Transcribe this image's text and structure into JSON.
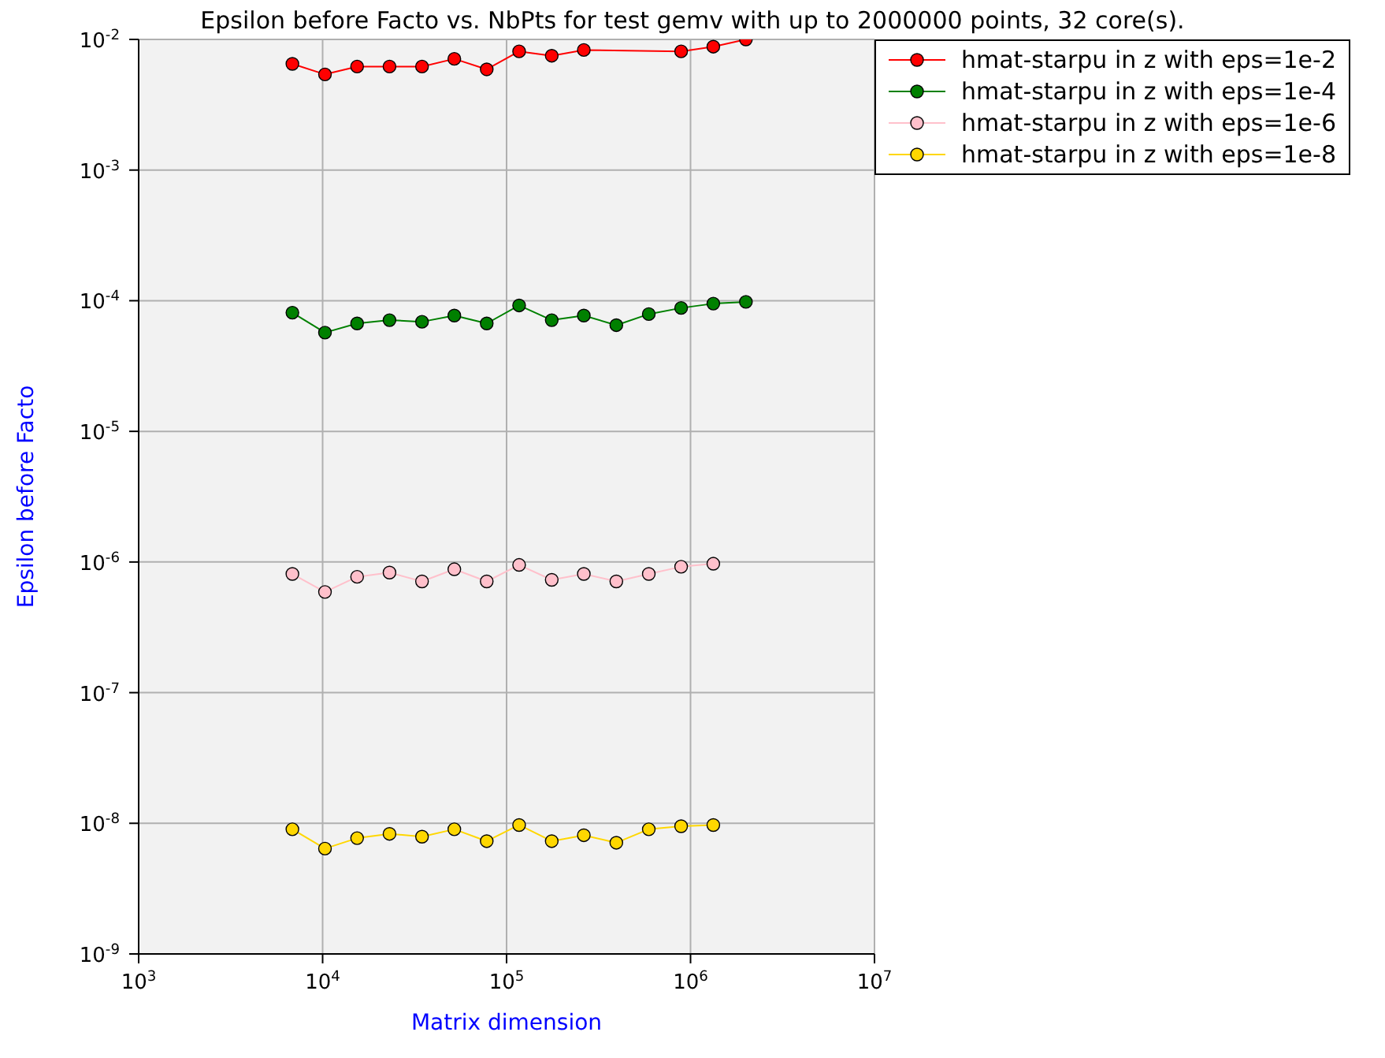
{
  "chart_data": {
    "type": "line",
    "title": "Epsilon before Facto vs. NbPts for test gemv with up to 2000000 points, 32 core(s).",
    "xlabel": "Matrix dimension",
    "ylabel": "Epsilon before Facto",
    "log": "xy",
    "grid": true,
    "legend": "top right",
    "marker": "circle",
    "line_style": "solid",
    "x": [
      6850,
      10300,
      15400,
      23100,
      34700,
      52000,
      78000,
      117000,
      176000,
      263000,
      395000,
      593000,
      889000,
      1330000,
      2000000
    ],
    "xlim": [
      1000,
      10000000
    ],
    "xticks": [
      {
        "value": 1000,
        "label": "10$^{3}$"
      },
      {
        "value": 10000,
        "label": "10$^{4}$"
      },
      {
        "value": 100000,
        "label": "10$^{5}$"
      },
      {
        "value": 1000000,
        "label": "10$^{6}$"
      },
      {
        "value": 10000000,
        "label": "10$^{7}$"
      }
    ],
    "ylim": [
      1e-09,
      0.01
    ],
    "yticks": [
      {
        "value": 1e-09,
        "label": "10$^{-9}$"
      },
      {
        "value": 1e-08,
        "label": "10$^{-8}$"
      },
      {
        "value": 1e-07,
        "label": "10$^{-7}$"
      },
      {
        "value": 1e-06,
        "label": "10$^{-6}$"
      },
      {
        "value": 1e-05,
        "label": "10$^{-5}$"
      },
      {
        "value": 0.0001,
        "label": "10$^{-4}$"
      },
      {
        "value": 0.001,
        "label": "10$^{-3}$"
      },
      {
        "value": 0.01,
        "label": "10$^{-2}$"
      }
    ],
    "series": [
      {
        "name": "hmat-starpu in z with eps=1e-2",
        "color": "#ff0000",
        "values": [
          0.0065,
          0.0054,
          0.0062,
          0.0062,
          0.0062,
          0.0071,
          0.0059,
          0.0081,
          0.0075,
          0.0083,
          null,
          null,
          0.0081,
          0.0088,
          0.01
        ]
      },
      {
        "name": "hmat-starpu in z with eps=1e-4",
        "color": "#008000",
        "values": [
          8.1e-05,
          5.7e-05,
          6.7e-05,
          7.1e-05,
          6.9e-05,
          7.7e-05,
          6.7e-05,
          9.2e-05,
          7.1e-05,
          7.7e-05,
          6.5e-05,
          7.9e-05,
          8.8e-05,
          9.5e-05,
          9.8e-05
        ]
      },
      {
        "name": "hmat-starpu in z with eps=1e-6",
        "color": "#ffc0cb",
        "x": [
          6850,
          10300,
          15400,
          23100,
          34700,
          52000,
          78000,
          117000,
          176000,
          263000,
          395000,
          593000,
          889000,
          1330000
        ],
        "values": [
          8.1e-07,
          5.9e-07,
          7.7e-07,
          8.3e-07,
          7.1e-07,
          8.8e-07,
          7.1e-07,
          9.5e-07,
          7.3e-07,
          8.1e-07,
          7.1e-07,
          8.1e-07,
          9.2e-07,
          9.7e-07
        ]
      },
      {
        "name": "hmat-starpu in z with eps=1e-8",
        "color": "#ffd700",
        "x": [
          6850,
          10300,
          15400,
          23100,
          34700,
          52000,
          78000,
          117000,
          176000,
          263000,
          395000,
          593000,
          889000,
          1330000
        ],
        "values": [
          9e-09,
          6.4e-09,
          7.7e-09,
          8.3e-09,
          7.9e-09,
          9e-09,
          7.3e-09,
          9.7e-09,
          7.3e-09,
          8.1e-09,
          7.1e-09,
          9e-09,
          9.5e-09,
          9.7e-09
        ]
      }
    ]
  }
}
